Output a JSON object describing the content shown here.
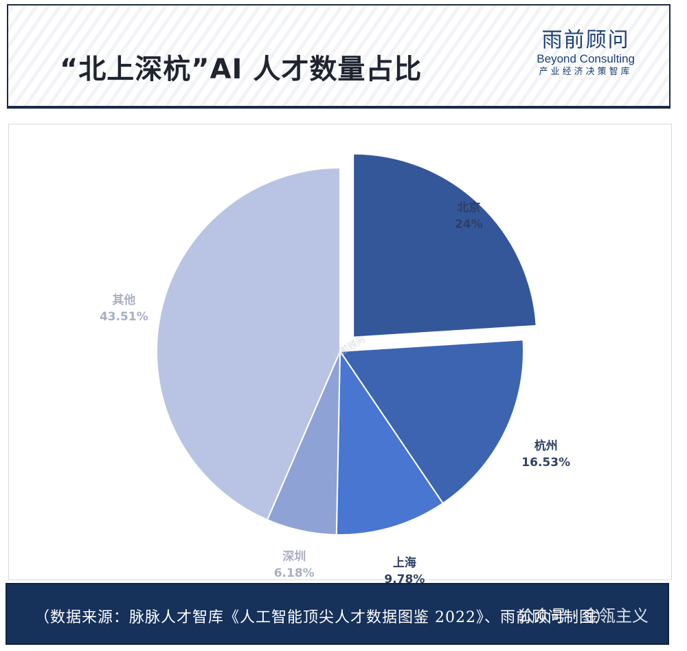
{
  "header": {
    "title": "“北上深杭”AI 人才数量占比",
    "logo_cn": "雨前顾问",
    "logo_en": "Beyond Consulting",
    "logo_sub": "产业经济决策智库"
  },
  "watermark_center": "雨前顾问",
  "footer": {
    "source": "（数据来源：脉脉人才智库《人工智能顶尖人才数据图鉴 2022》、雨前顾问制图）",
    "overlay": "公众号 · 金瓴主义"
  },
  "chart_data": {
    "type": "pie",
    "title": "",
    "start": "12 o'clock",
    "direction": "clockwise",
    "slices": [
      {
        "name": "北京",
        "value": 24,
        "label": "24%",
        "color": "#34579a",
        "label_color": "#2f3f63",
        "exploded": true
      },
      {
        "name": "杭州",
        "value": 16.53,
        "label": "16.53%",
        "color": "#3d64b1",
        "label_color": "#2f3f63",
        "exploded": false
      },
      {
        "name": "上海",
        "value": 9.78,
        "label": "9.78%",
        "color": "#4876d0",
        "label_color": "#2f3f63",
        "exploded": false
      },
      {
        "name": "深圳",
        "value": 6.18,
        "label": "6.18%",
        "color": "#8fa2d6",
        "label_color": "#a7afc4",
        "exploded": false
      },
      {
        "name": "其他",
        "value": 43.51,
        "label": "43.51%",
        "color": "#b9c4e4",
        "label_color": "#a7afc4",
        "exploded": false
      }
    ]
  },
  "colors": {
    "header_border": "#1b2a44",
    "footer_bg": "#16315a",
    "logo": "#1d3f75"
  }
}
